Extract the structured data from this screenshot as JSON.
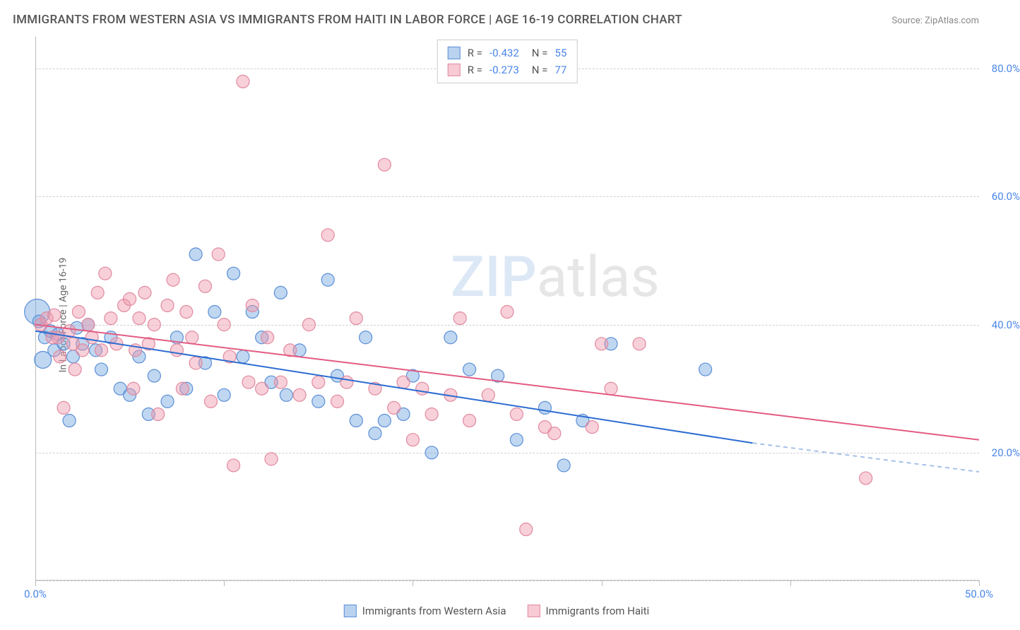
{
  "title": "IMMIGRANTS FROM WESTERN ASIA VS IMMIGRANTS FROM HAITI IN LABOR FORCE | AGE 16-19 CORRELATION CHART",
  "source": "Source: ZipAtlas.com",
  "ylabel": "In Labor Force | Age 16-19",
  "watermark_zip": "ZIP",
  "watermark_atlas": "atlas",
  "chart": {
    "type": "scatter",
    "xlim": [
      0,
      50
    ],
    "ylim": [
      0,
      85
    ],
    "x_ticks": [
      0,
      10,
      20,
      30,
      40,
      50
    ],
    "x_tick_labels": {
      "0": "0.0%",
      "50": "50.0%"
    },
    "y_gridlines": [
      0,
      20,
      40,
      60,
      80
    ],
    "y_tick_labels": {
      "20": "20.0%",
      "40": "40.0%",
      "60": "60.0%",
      "80": "80.0%"
    },
    "background_color": "#ffffff",
    "grid_color": "#d0d0d0",
    "axis_color": "#bbbbbb",
    "tick_label_color": "#4a86e8",
    "label_fontsize": 14,
    "title_fontsize": 17,
    "series": [
      {
        "name": "Immigrants from Western Asia",
        "color": "#74a6e0",
        "border_color": "#5b8fd6",
        "fill_opacity": 0.45,
        "marker_radius": 9,
        "R": "-0.432",
        "N": "55",
        "trend": {
          "x1": 0,
          "y1": 39,
          "x2": 38,
          "y2": 21.5,
          "xmax_extrap": 50,
          "y_extrap": 17,
          "line_color": "#2d6cd1",
          "line_width": 2,
          "dash_color": "#a7c1e8"
        },
        "points": [
          {
            "x": 0.1,
            "y": 42,
            "r": 18
          },
          {
            "x": 0.2,
            "y": 40.5
          },
          {
            "x": 0.4,
            "y": 34.5,
            "r": 12
          },
          {
            "x": 0.5,
            "y": 38
          },
          {
            "x": 0.8,
            "y": 39
          },
          {
            "x": 1.0,
            "y": 36
          },
          {
            "x": 1.2,
            "y": 38.5
          },
          {
            "x": 1.5,
            "y": 37
          },
          {
            "x": 1.8,
            "y": 25
          },
          {
            "x": 2.0,
            "y": 35
          },
          {
            "x": 2.2,
            "y": 39.5
          },
          {
            "x": 2.5,
            "y": 37
          },
          {
            "x": 2.8,
            "y": 40
          },
          {
            "x": 3.2,
            "y": 36
          },
          {
            "x": 3.5,
            "y": 33
          },
          {
            "x": 4.0,
            "y": 38
          },
          {
            "x": 4.5,
            "y": 30
          },
          {
            "x": 5.0,
            "y": 29
          },
          {
            "x": 5.5,
            "y": 35
          },
          {
            "x": 6.0,
            "y": 26
          },
          {
            "x": 6.3,
            "y": 32
          },
          {
            "x": 7.0,
            "y": 28
          },
          {
            "x": 7.5,
            "y": 38
          },
          {
            "x": 8.0,
            "y": 30
          },
          {
            "x": 8.5,
            "y": 51
          },
          {
            "x": 9.0,
            "y": 34
          },
          {
            "x": 9.5,
            "y": 42
          },
          {
            "x": 10.0,
            "y": 29
          },
          {
            "x": 10.5,
            "y": 48
          },
          {
            "x": 11.0,
            "y": 35
          },
          {
            "x": 11.5,
            "y": 42
          },
          {
            "x": 12.0,
            "y": 38
          },
          {
            "x": 12.5,
            "y": 31
          },
          {
            "x": 13.0,
            "y": 45
          },
          {
            "x": 13.3,
            "y": 29
          },
          {
            "x": 14.0,
            "y": 36
          },
          {
            "x": 15.0,
            "y": 28
          },
          {
            "x": 15.5,
            "y": 47
          },
          {
            "x": 16.0,
            "y": 32
          },
          {
            "x": 17.0,
            "y": 25
          },
          {
            "x": 17.5,
            "y": 38
          },
          {
            "x": 18.0,
            "y": 23
          },
          {
            "x": 18.5,
            "y": 25
          },
          {
            "x": 19.5,
            "y": 26
          },
          {
            "x": 20.0,
            "y": 32
          },
          {
            "x": 21.0,
            "y": 20
          },
          {
            "x": 22.0,
            "y": 38
          },
          {
            "x": 23.0,
            "y": 33
          },
          {
            "x": 24.5,
            "y": 32
          },
          {
            "x": 25.5,
            "y": 22
          },
          {
            "x": 27.0,
            "y": 27
          },
          {
            "x": 28.0,
            "y": 18
          },
          {
            "x": 29.0,
            "y": 25
          },
          {
            "x": 35.5,
            "y": 33
          },
          {
            "x": 30.5,
            "y": 37
          }
        ]
      },
      {
        "name": "Immigrants from Haiti",
        "color": "#f096aa",
        "border_color": "#e08aa0",
        "fill_opacity": 0.45,
        "marker_radius": 9,
        "R": "-0.273",
        "N": "77",
        "trend": {
          "x1": 0,
          "y1": 40,
          "x2": 50,
          "y2": 22,
          "line_color": "#e35b82",
          "line_width": 2
        },
        "points": [
          {
            "x": 0.3,
            "y": 40
          },
          {
            "x": 0.6,
            "y": 41
          },
          {
            "x": 0.9,
            "y": 38
          },
          {
            "x": 1.0,
            "y": 41.5
          },
          {
            "x": 1.2,
            "y": 38
          },
          {
            "x": 1.5,
            "y": 27
          },
          {
            "x": 1.8,
            "y": 39
          },
          {
            "x": 2.0,
            "y": 37
          },
          {
            "x": 2.3,
            "y": 42
          },
          {
            "x": 2.5,
            "y": 36
          },
          {
            "x": 2.8,
            "y": 40
          },
          {
            "x": 3.0,
            "y": 38
          },
          {
            "x": 3.3,
            "y": 45
          },
          {
            "x": 3.5,
            "y": 36
          },
          {
            "x": 4.0,
            "y": 41
          },
          {
            "x": 4.3,
            "y": 37
          },
          {
            "x": 4.7,
            "y": 43
          },
          {
            "x": 5.0,
            "y": 44
          },
          {
            "x": 5.3,
            "y": 36
          },
          {
            "x": 5.5,
            "y": 41
          },
          {
            "x": 5.8,
            "y": 45
          },
          {
            "x": 6.0,
            "y": 37
          },
          {
            "x": 6.3,
            "y": 40
          },
          {
            "x": 6.5,
            "y": 26
          },
          {
            "x": 7.0,
            "y": 43
          },
          {
            "x": 7.3,
            "y": 47
          },
          {
            "x": 7.5,
            "y": 36
          },
          {
            "x": 7.8,
            "y": 30
          },
          {
            "x": 8.0,
            "y": 42
          },
          {
            "x": 8.3,
            "y": 38
          },
          {
            "x": 8.5,
            "y": 34
          },
          {
            "x": 9.0,
            "y": 46
          },
          {
            "x": 9.3,
            "y": 28
          },
          {
            "x": 9.7,
            "y": 51
          },
          {
            "x": 10.0,
            "y": 40
          },
          {
            "x": 10.3,
            "y": 35
          },
          {
            "x": 10.5,
            "y": 18
          },
          {
            "x": 11.0,
            "y": 78
          },
          {
            "x": 11.3,
            "y": 31
          },
          {
            "x": 11.5,
            "y": 43
          },
          {
            "x": 12.0,
            "y": 30
          },
          {
            "x": 12.3,
            "y": 38
          },
          {
            "x": 12.5,
            "y": 19
          },
          {
            "x": 13.0,
            "y": 31
          },
          {
            "x": 13.5,
            "y": 36
          },
          {
            "x": 14.0,
            "y": 29
          },
          {
            "x": 14.5,
            "y": 40
          },
          {
            "x": 15.0,
            "y": 31
          },
          {
            "x": 15.5,
            "y": 54
          },
          {
            "x": 16.0,
            "y": 28
          },
          {
            "x": 16.5,
            "y": 31
          },
          {
            "x": 17.0,
            "y": 41
          },
          {
            "x": 18.0,
            "y": 30
          },
          {
            "x": 18.5,
            "y": 65
          },
          {
            "x": 19.0,
            "y": 27
          },
          {
            "x": 19.5,
            "y": 31
          },
          {
            "x": 20.0,
            "y": 22
          },
          {
            "x": 20.5,
            "y": 30
          },
          {
            "x": 21.0,
            "y": 26
          },
          {
            "x": 22.0,
            "y": 29
          },
          {
            "x": 22.5,
            "y": 41
          },
          {
            "x": 23.0,
            "y": 25
          },
          {
            "x": 24.0,
            "y": 29
          },
          {
            "x": 25.0,
            "y": 42
          },
          {
            "x": 25.5,
            "y": 26
          },
          {
            "x": 26.0,
            "y": 8
          },
          {
            "x": 27.0,
            "y": 24
          },
          {
            "x": 27.5,
            "y": 23
          },
          {
            "x": 29.5,
            "y": 24
          },
          {
            "x": 30.0,
            "y": 37
          },
          {
            "x": 30.5,
            "y": 30
          },
          {
            "x": 32.0,
            "y": 37
          },
          {
            "x": 44.0,
            "y": 16
          },
          {
            "x": 3.7,
            "y": 48
          },
          {
            "x": 5.2,
            "y": 30
          },
          {
            "x": 1.3,
            "y": 35
          },
          {
            "x": 2.1,
            "y": 33
          }
        ]
      }
    ],
    "legend_bottom": [
      {
        "swatch": "blue",
        "label": "Immigrants from Western Asia"
      },
      {
        "swatch": "pink",
        "label": "Immigrants from Haiti"
      }
    ]
  }
}
